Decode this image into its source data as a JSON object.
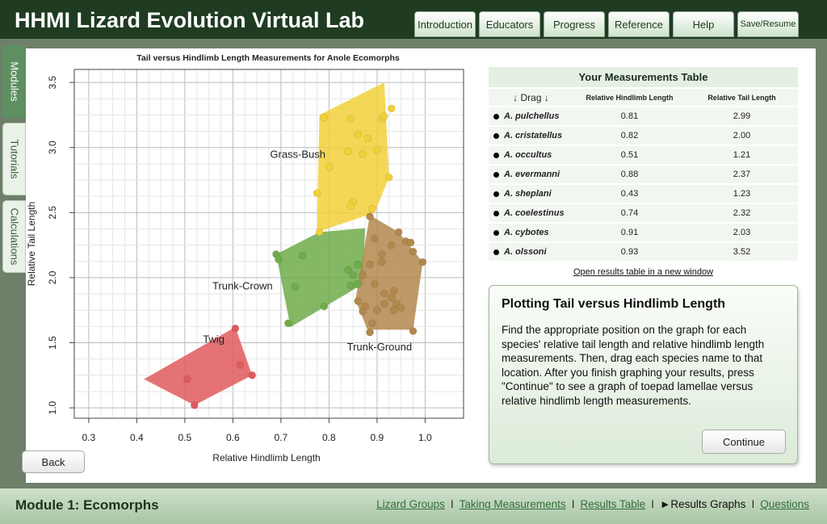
{
  "app": {
    "title": "HHMI Lizard Evolution Virtual Lab"
  },
  "top_nav": [
    {
      "label": "Introduction"
    },
    {
      "label": "Educators"
    },
    {
      "label": "Progress"
    },
    {
      "label": "Reference"
    },
    {
      "label": "Help"
    },
    {
      "label": "Save/Resume"
    }
  ],
  "side_tabs": {
    "modules": "Modules",
    "tutorials": "Tutorials",
    "calculations": "Calculations"
  },
  "chart_data": {
    "type": "scatter",
    "title": "Tail versus Hindlimb Length Measurements for Anole Ecomorphs",
    "xlabel": "Relative Hindlimb Length",
    "ylabel": "Relative Tail Length",
    "xlim": [
      0.27,
      1.08
    ],
    "ylim": [
      0.92,
      3.6
    ],
    "xticks": [
      0.3,
      0.4,
      0.5,
      0.6,
      0.7,
      0.8,
      0.9,
      1.0
    ],
    "yticks": [
      1.0,
      1.5,
      2.0,
      2.5,
      3.0,
      3.5
    ],
    "xtick_labels": [
      "0.3",
      "0.4",
      "0.5",
      "0.6",
      "0.7",
      "0.8",
      "0.9",
      "1.0"
    ],
    "ytick_labels": [
      "1.0",
      "1.5",
      "2.0",
      "2.5",
      "3.0",
      "3.5"
    ],
    "grid": true,
    "groups": [
      {
        "name": "Grass-Bush",
        "color": "#f2d03a",
        "label_at": [
          0.735,
          2.92
        ],
        "hull": [
          [
            0.775,
            2.35
          ],
          [
            0.78,
            3.25
          ],
          [
            0.915,
            3.5
          ],
          [
            0.925,
            2.77
          ],
          [
            0.895,
            2.5
          ]
        ],
        "points": [
          [
            0.8,
            2.85
          ],
          [
            0.79,
            3.23
          ],
          [
            0.845,
            3.22
          ],
          [
            0.86,
            3.1
          ],
          [
            0.84,
            2.97
          ],
          [
            0.87,
            2.95
          ],
          [
            0.88,
            3.07
          ],
          [
            0.9,
            2.98
          ],
          [
            0.91,
            3.22
          ],
          [
            0.915,
            3.24
          ],
          [
            0.93,
            3.3
          ],
          [
            0.925,
            2.77
          ],
          [
            0.775,
            2.65
          ],
          [
            0.85,
            2.58
          ],
          [
            0.845,
            2.55
          ],
          [
            0.89,
            2.53
          ],
          [
            0.78,
            2.35
          ]
        ]
      },
      {
        "name": "Trunk-Crown",
        "color": "#6fac4a",
        "label_at": [
          0.62,
          1.91
        ],
        "hull": [
          [
            0.69,
            2.18
          ],
          [
            0.72,
            1.62
          ],
          [
            0.87,
            1.95
          ],
          [
            0.875,
            2.38
          ],
          [
            0.78,
            2.35
          ]
        ],
        "points": [
          [
            0.69,
            2.18
          ],
          [
            0.695,
            2.14
          ],
          [
            0.73,
            1.93
          ],
          [
            0.745,
            2.17
          ],
          [
            0.715,
            1.65
          ],
          [
            0.79,
            1.78
          ],
          [
            0.84,
            2.06
          ],
          [
            0.845,
            1.94
          ],
          [
            0.85,
            2.02
          ],
          [
            0.86,
            2.1
          ],
          [
            0.86,
            1.95
          ]
        ]
      },
      {
        "name": "Trunk-Ground",
        "color": "#b2884d",
        "label_at": [
          0.905,
          1.44
        ],
        "hull": [
          [
            0.885,
            2.48
          ],
          [
            0.855,
            1.83
          ],
          [
            0.88,
            1.6
          ],
          [
            0.975,
            1.6
          ],
          [
            0.995,
            2.12
          ],
          [
            0.945,
            2.35
          ]
        ],
        "points": [
          [
            0.885,
            2.47
          ],
          [
            0.895,
            2.3
          ],
          [
            0.91,
            2.18
          ],
          [
            0.93,
            2.25
          ],
          [
            0.945,
            2.35
          ],
          [
            0.96,
            2.28
          ],
          [
            0.97,
            2.27
          ],
          [
            0.975,
            2.2
          ],
          [
            0.995,
            2.12
          ],
          [
            0.91,
            2.12
          ],
          [
            0.885,
            2.1
          ],
          [
            0.87,
            2.02
          ],
          [
            0.895,
            1.95
          ],
          [
            0.915,
            1.88
          ],
          [
            0.93,
            1.85
          ],
          [
            0.935,
            1.9
          ],
          [
            0.86,
            1.82
          ],
          [
            0.875,
            1.78
          ],
          [
            0.915,
            1.8
          ],
          [
            0.935,
            1.75
          ],
          [
            0.94,
            1.8
          ],
          [
            0.95,
            1.77
          ],
          [
            0.87,
            1.74
          ],
          [
            0.89,
            1.65
          ],
          [
            0.885,
            1.58
          ],
          [
            0.975,
            1.59
          ],
          [
            0.9,
            1.75
          ]
        ]
      },
      {
        "name": "Twig",
        "color": "#e05a5e",
        "label_at": [
          0.56,
          1.5
        ],
        "hull": [
          [
            0.415,
            1.22
          ],
          [
            0.52,
            1.02
          ],
          [
            0.64,
            1.25
          ],
          [
            0.605,
            1.62
          ]
        ],
        "points": [
          [
            0.605,
            1.61
          ],
          [
            0.615,
            1.33
          ],
          [
            0.64,
            1.25
          ],
          [
            0.505,
            1.22
          ],
          [
            0.52,
            1.02
          ]
        ]
      }
    ]
  },
  "measurements": {
    "title": "Your Measurements Table",
    "headers": {
      "drag": "↓ Drag ↓",
      "hindlimb": "Relative Hindlimb Length",
      "tail": "Relative Tail Length"
    },
    "rows": [
      {
        "species": "A. pulchellus",
        "hindlimb": "0.81",
        "tail": "2.99"
      },
      {
        "species": "A. cristatellus",
        "hindlimb": "0.82",
        "tail": "2.00"
      },
      {
        "species": "A. occultus",
        "hindlimb": "0.51",
        "tail": "1.21"
      },
      {
        "species": "A. evermanni",
        "hindlimb": "0.88",
        "tail": "2.37"
      },
      {
        "species": "A. sheplani",
        "hindlimb": "0.43",
        "tail": "1.23"
      },
      {
        "species": "A. coelestinus",
        "hindlimb": "0.74",
        "tail": "2.32"
      },
      {
        "species": "A. cybotes",
        "hindlimb": "0.91",
        "tail": "2.03"
      },
      {
        "species": "A. olssoni",
        "hindlimb": "0.93",
        "tail": "3.52"
      }
    ],
    "open_link": "Open results table in a new window"
  },
  "info": {
    "heading": "Plotting Tail versus Hindlimb Length",
    "body": "Find the appropriate position on the graph for each species' relative tail length and relative hindlimb length measurements. Then, drag each species name to that location. After you finish graphing your results, press \"Continue\" to see a graph of toepad lamellae versus relative hindlimb length measurements.",
    "continue_label": "Continue"
  },
  "back_label": "Back",
  "footer": {
    "module_title": "Module 1: Ecomorphs",
    "nav": [
      {
        "label": "Lizard Groups",
        "current": false
      },
      {
        "label": "Taking Measurements",
        "current": false
      },
      {
        "label": "Results Table",
        "current": false
      },
      {
        "label": "Results Graphs",
        "current": true
      },
      {
        "label": "Questions",
        "current": false
      }
    ],
    "current_marker": "►"
  }
}
